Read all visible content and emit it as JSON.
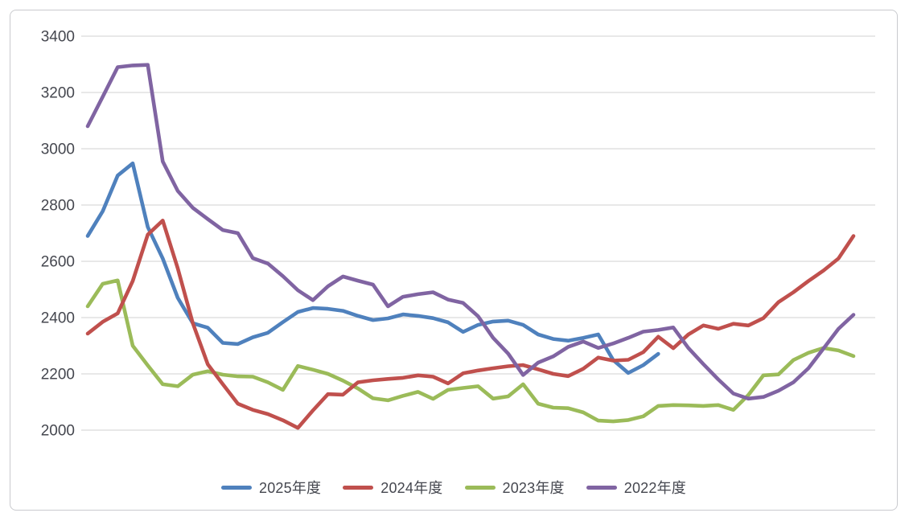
{
  "chart_data": {
    "type": "line",
    "title": "",
    "x_axis": {
      "label": "",
      "tick_labels_visible": false,
      "categories_are_weeks": true,
      "num_weeks": 52
    },
    "y_axis": {
      "label": "",
      "min": 2000,
      "max": 3400,
      "tick_step": 200,
      "ticks": [
        3400,
        3200,
        3000,
        2800,
        2600,
        2400,
        2200,
        2000
      ]
    },
    "grid": "horizontal-only",
    "gridline_color": "#d9d9d9",
    "background_color": "#ffffff",
    "frame_border_color": "#c9cace",
    "axis_text_color": "#45474f",
    "legend_position": "bottom-center",
    "series": [
      {
        "name": "2025年度",
        "color": "#4F81BD",
        "values": [
          2690,
          2778,
          2905,
          2948,
          2722,
          2610,
          2470,
          2380,
          2364,
          2310,
          2306,
          2330,
          2346,
          2384,
          2420,
          2434,
          2431,
          2424,
          2406,
          2391,
          2397,
          2411,
          2406,
          2398,
          2383,
          2349,
          2374,
          2386,
          2389,
          2374,
          2340,
          2324,
          2318,
          2328,
          2340,
          2249,
          2203,
          2231,
          2271
        ]
      },
      {
        "name": "2024年度",
        "color": "#C0504D",
        "values": [
          2343,
          2385,
          2415,
          2530,
          2695,
          2745,
          2575,
          2380,
          2234,
          2163,
          2094,
          2072,
          2057,
          2035,
          2008,
          2070,
          2128,
          2126,
          2170,
          2177,
          2182,
          2186,
          2195,
          2190,
          2166,
          2202,
          2212,
          2220,
          2227,
          2231,
          2216,
          2200,
          2192,
          2218,
          2258,
          2247,
          2250,
          2277,
          2332,
          2291,
          2340,
          2372,
          2360,
          2378,
          2372,
          2398,
          2455,
          2490,
          2530,
          2567,
          2610,
          2690
        ]
      },
      {
        "name": "2023年度",
        "color": "#9BBB59",
        "values": [
          2440,
          2520,
          2532,
          2300,
          2230,
          2163,
          2156,
          2197,
          2209,
          2197,
          2191,
          2190,
          2170,
          2143,
          2228,
          2215,
          2200,
          2176,
          2148,
          2113,
          2106,
          2122,
          2136,
          2111,
          2143,
          2150,
          2156,
          2112,
          2120,
          2163,
          2094,
          2080,
          2078,
          2063,
          2034,
          2031,
          2036,
          2049,
          2086,
          2089,
          2088,
          2086,
          2089,
          2072,
          2125,
          2195,
          2198,
          2249,
          2275,
          2292,
          2283,
          2263
        ]
      },
      {
        "name": "2022年度",
        "color": "#8064A2",
        "values": [
          3080,
          3185,
          3290,
          3296,
          3298,
          2955,
          2850,
          2790,
          2750,
          2711,
          2700,
          2611,
          2592,
          2547,
          2497,
          2462,
          2511,
          2546,
          2531,
          2517,
          2440,
          2474,
          2483,
          2490,
          2464,
          2452,
          2405,
          2328,
          2272,
          2196,
          2240,
          2262,
          2296,
          2315,
          2292,
          2308,
          2328,
          2350,
          2356,
          2365,
          2292,
          2235,
          2180,
          2130,
          2112,
          2118,
          2140,
          2170,
          2220,
          2290,
          2360,
          2410
        ]
      }
    ]
  }
}
